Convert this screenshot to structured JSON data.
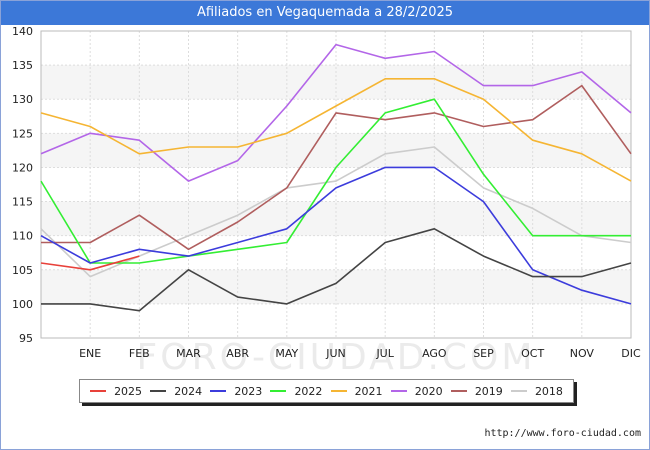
{
  "title": "Afiliados en Vegaquemada a 28/2/2025",
  "source_url": "http://www.foro-ciudad.com",
  "watermark": "FORO-CIUDAD.COM",
  "chart_data": {
    "type": "line",
    "categories": [
      "",
      "ENE",
      "FEB",
      "MAR",
      "ABR",
      "MAY",
      "JUN",
      "JUL",
      "AGO",
      "SEP",
      "OCT",
      "NOV",
      "DIC"
    ],
    "ylim": [
      95,
      140
    ],
    "yticks": [
      95,
      100,
      105,
      110,
      115,
      120,
      125,
      130,
      135,
      140
    ],
    "grid": true,
    "legend_position": "bottom",
    "series": [
      {
        "name": "2025",
        "color": "#e8413a",
        "values": [
          106,
          105,
          107,
          null,
          null,
          null,
          null,
          null,
          null,
          null,
          null,
          null,
          null
        ]
      },
      {
        "name": "2024",
        "color": "#444444",
        "values": [
          100,
          100,
          99,
          105,
          101,
          100,
          103,
          109,
          111,
          107,
          104,
          104,
          106
        ]
      },
      {
        "name": "2023",
        "color": "#3c3cdc",
        "values": [
          110,
          106,
          108,
          107,
          109,
          111,
          117,
          120,
          120,
          115,
          105,
          102,
          100
        ]
      },
      {
        "name": "2022",
        "color": "#33ee33",
        "values": [
          118,
          106,
          106,
          107,
          108,
          109,
          120,
          128,
          130,
          119,
          110,
          110,
          110
        ]
      },
      {
        "name": "2021",
        "color": "#f5b533",
        "values": [
          128,
          126,
          122,
          123,
          123,
          125,
          129,
          133,
          133,
          130,
          124,
          122,
          118
        ]
      },
      {
        "name": "2020",
        "color": "#b366e8",
        "values": [
          122,
          125,
          124,
          118,
          121,
          129,
          138,
          136,
          137,
          132,
          132,
          134,
          128
        ]
      },
      {
        "name": "2019",
        "color": "#b05e5e",
        "values": [
          109,
          109,
          113,
          108,
          112,
          117,
          128,
          127,
          128,
          126,
          127,
          132,
          122
        ]
      },
      {
        "name": "2018",
        "color": "#cccccc",
        "values": [
          111,
          104,
          107,
          110,
          113,
          117,
          118,
          122,
          123,
          117,
          114,
          110,
          109
        ]
      }
    ]
  }
}
